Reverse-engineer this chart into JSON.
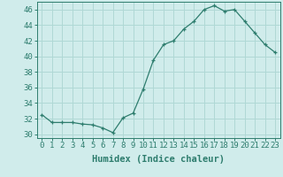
{
  "x": [
    0,
    1,
    2,
    3,
    4,
    5,
    6,
    7,
    8,
    9,
    10,
    11,
    12,
    13,
    14,
    15,
    16,
    17,
    18,
    19,
    20,
    21,
    22,
    23
  ],
  "y": [
    32.5,
    31.5,
    31.5,
    31.5,
    31.3,
    31.2,
    30.8,
    30.2,
    32.1,
    32.7,
    35.8,
    39.5,
    41.5,
    42.0,
    43.5,
    44.5,
    46.0,
    46.5,
    45.8,
    46.0,
    44.5,
    43.0,
    41.5,
    40.5
  ],
  "line_color": "#2e7d6e",
  "marker": "+",
  "bg_color": "#d0eceb",
  "grid_color": "#afd8d5",
  "xlabel": "Humidex (Indice chaleur)",
  "ylim": [
    29.5,
    47.0
  ],
  "yticks": [
    30,
    32,
    34,
    36,
    38,
    40,
    42,
    44,
    46
  ],
  "xticks": [
    0,
    1,
    2,
    3,
    4,
    5,
    6,
    7,
    8,
    9,
    10,
    11,
    12,
    13,
    14,
    15,
    16,
    17,
    18,
    19,
    20,
    21,
    22,
    23
  ],
  "tick_color": "#2e7d6e",
  "label_fontsize": 7.5,
  "tick_fontsize": 6.5
}
